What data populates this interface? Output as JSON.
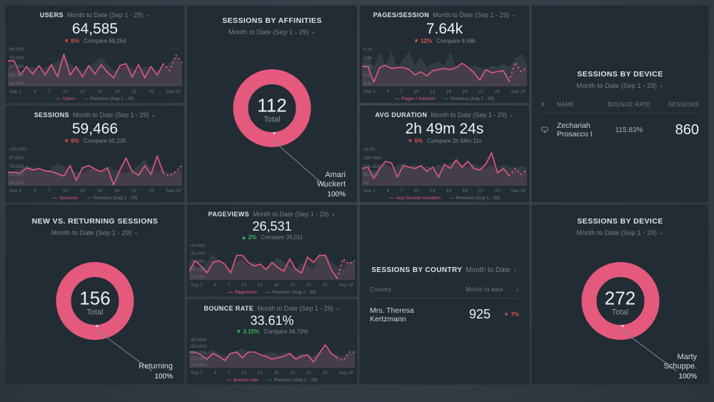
{
  "colors": {
    "accent_pink": "#e5597d",
    "prev_fill": "#3e474f",
    "red": "#dd5149",
    "green": "#3fb45a",
    "muted": "#77808a",
    "callout_line": "#808a93"
  },
  "chart_data": [
    {
      "type": "line",
      "title": "USERS",
      "subtitle": "Month to Date (Sep 1 - 29)",
      "value": "64,585",
      "delta": "▼ 5%",
      "delta_color": "#dd5149",
      "compare": "Compare 68,264",
      "ylim": [
        40,
        80
      ],
      "yticks": [
        "80,000",
        "70,000",
        "60,000",
        "50,000",
        "40,000"
      ],
      "x": [
        "Sep 1",
        "4",
        "7",
        "10",
        "13",
        "16",
        "19",
        "22",
        "25",
        "Sep 29"
      ],
      "grid": true,
      "legend_position": "bottom",
      "series": [
        {
          "name": "Users",
          "values": [
            67,
            67,
            52,
            61,
            53,
            62,
            52,
            63,
            50,
            74,
            52,
            61,
            50,
            62,
            53,
            63,
            55,
            49,
            62,
            64,
            50,
            63,
            49,
            61,
            52,
            64,
            57,
            73,
            65
          ]
        },
        {
          "name": "Previous (Aug 1 - 29)",
          "values": [
            60,
            58,
            56,
            58,
            61,
            56,
            60,
            63,
            67,
            71,
            64,
            59,
            57,
            61,
            66,
            71,
            63,
            57,
            59,
            62,
            59,
            57,
            61,
            58,
            56,
            60,
            66,
            71,
            63
          ]
        }
      ]
    },
    {
      "type": "line",
      "title": "SESSIONS",
      "subtitle": "Month to Date (Sep 1 - 29)",
      "value": "59,466",
      "delta": "▼ 9%",
      "delta_color": "#dd5149",
      "compare": "Compare 65,235",
      "ylim": [
        50,
        100
      ],
      "yticks": [
        "100,000",
        "87,500",
        "75,000",
        "62,500",
        "50,000"
      ],
      "x": [
        "Sep 1",
        "4",
        "7",
        "10",
        "13",
        "16",
        "19",
        "22",
        "25",
        "Sep 29"
      ],
      "grid": true,
      "legend_position": "bottom",
      "series": [
        {
          "name": "Sessions",
          "values": [
            68,
            68,
            67,
            74,
            71,
            73,
            70,
            69,
            66,
            63,
            77,
            57,
            74,
            77,
            72,
            69,
            74,
            51,
            71,
            87,
            69,
            64,
            77,
            65,
            90,
            67,
            63,
            69,
            78
          ]
        },
        {
          "name": "Previous (Aug 1 - 29)",
          "values": [
            68,
            70,
            72,
            78,
            74,
            71,
            69,
            73,
            80,
            76,
            71,
            69,
            67,
            71,
            74,
            69,
            76,
            71,
            69,
            67,
            70,
            78,
            86,
            73,
            69,
            71,
            67,
            69,
            71
          ]
        }
      ]
    },
    {
      "type": "pie",
      "title": "SESSIONS BY AFFINITIES",
      "subtitle": "Month to Date (Sep 1 - 29)",
      "total": "112",
      "total_label": "Total",
      "slices": [
        {
          "label": "Amari Wuckert",
          "pct": "100%",
          "value": 112
        }
      ]
    },
    {
      "type": "line",
      "title": "PAGES/SESSION",
      "subtitle": "Month to Date (Sep 1 - 29)",
      "value": "7.64k",
      "delta": "▼ 12%",
      "delta_color": "#dd5149",
      "compare": "Compare 8.68k",
      "ylim": [
        5.6,
        9.2
      ],
      "yticks": [
        "9.2k",
        "8.3k",
        "7.4k",
        "6.5k",
        "5.6k"
      ],
      "x": [
        "Sep 1",
        "4",
        "7",
        "10",
        "13",
        "16",
        "19",
        "22",
        "25",
        "Sep 29"
      ],
      "grid": true,
      "legend_position": "bottom",
      "series": [
        {
          "name": "Pages / Session",
          "values": [
            7.5,
            7.5,
            6.0,
            7.4,
            7.6,
            7.3,
            7.4,
            7.4,
            7.2,
            6.7,
            7.0,
            6.6,
            7.1,
            7.2,
            7.3,
            7.2,
            7.4,
            7.8,
            7.4,
            6.9,
            6.2,
            7.2,
            6.9,
            7.0,
            7.1,
            6.1,
            7.9,
            7.0,
            7.4
          ]
        },
        {
          "name": "Previous (Aug 1 - 29)",
          "values": [
            7.8,
            8.6,
            7.4,
            8.9,
            7.6,
            9.0,
            7.4,
            8.2,
            8.9,
            7.6,
            8.4,
            7.4,
            7.8,
            8.0,
            7.6,
            8.9,
            7.4,
            7.6,
            7.2,
            7.6,
            7.4,
            7.2,
            7.6,
            7.4,
            7.8,
            7.4,
            8.2,
            8.7,
            7.8
          ]
        }
      ]
    },
    {
      "type": "line",
      "title": "AVG DURATION",
      "subtitle": "Month to Date (Sep 1 - 29)",
      "value": "2h 49m 24s",
      "delta": "▼ 5%",
      "delta_color": "#dd5149",
      "compare": "Compare 2h 58m 11s",
      "ylim": [
        0,
        26
      ],
      "yticks": [
        "1d 2h",
        "18h 45m",
        "12h 30m",
        "6h 15m",
        "0s"
      ],
      "x": [
        "Sep 1",
        "4",
        "7",
        "10",
        "13",
        "16",
        "19",
        "22",
        "25",
        "Sep 29"
      ],
      "grid": true,
      "legend_position": "bottom",
      "series": [
        {
          "name": "Avg Session Duration",
          "values": [
            12,
            13,
            5,
            12,
            17,
            16,
            6,
            14,
            13,
            12,
            14,
            10,
            13,
            6,
            15,
            12,
            18,
            13,
            17,
            12,
            11,
            15,
            23,
            9,
            12,
            7,
            12,
            8,
            11
          ]
        },
        {
          "name": "Previous (Aug 1 - 29)",
          "values": [
            14,
            12,
            10,
            13,
            15,
            12,
            14,
            16,
            13,
            15,
            12,
            14,
            12,
            15,
            13,
            16,
            19,
            14,
            12,
            16,
            13,
            12,
            14,
            12,
            15,
            13,
            12,
            14,
            12
          ]
        }
      ]
    },
    {
      "type": "table",
      "title": "SESSIONS BY DEVICE",
      "subtitle": "Month to Date (Sep 1 - 29)",
      "columns": [
        "#",
        "NAME",
        "BOUNCE RATE",
        "SESSIONS"
      ],
      "rows": [
        {
          "name": "Zechariah Prosacco I",
          "bounce_rate": "115.83%",
          "sessions": "860"
        }
      ]
    },
    {
      "type": "pie",
      "title": "NEW VS. RETURNING SESSIONS",
      "subtitle": "Month to Date (Sep 1 - 29)",
      "total": "156",
      "total_label": "Total",
      "slices": [
        {
          "label": "Returning",
          "pct": "100%",
          "value": 156
        }
      ]
    },
    {
      "type": "line",
      "title": "PAGEVIEWS",
      "subtitle": "Month to Date (Sep 1 - 29)",
      "value": "26,531",
      "delta": "▲ 2%",
      "delta_color": "#3fb45a",
      "compare": "Compare 26,011",
      "ylim": [
        20,
        40
      ],
      "yticks": [
        "40,000",
        "35,000",
        "30,000",
        "25,000",
        "20,000"
      ],
      "x": [
        "Sep 1",
        "4",
        "7",
        "10",
        "13",
        "16",
        "19",
        "22",
        "25",
        "Sep 29"
      ],
      "grid": true,
      "legend_position": "bottom",
      "series": [
        {
          "name": "Pageviews",
          "values": [
            25,
            31,
            28,
            24,
            30,
            31,
            29,
            24,
            34,
            34,
            30,
            28,
            29,
            26,
            30,
            27,
            25,
            32,
            26,
            24,
            33,
            30,
            34,
            34,
            26,
            21,
            32,
            29,
            31
          ]
        },
        {
          "name": "Previous (Aug 1 - 29)",
          "values": [
            30,
            28,
            26,
            30,
            35,
            30,
            28,
            26,
            30,
            32,
            28,
            30,
            28,
            26,
            30,
            33,
            30,
            28,
            26,
            30,
            28,
            26,
            34,
            35,
            30,
            28,
            26,
            30,
            31
          ]
        }
      ]
    },
    {
      "type": "line",
      "title": "BOUNCE RATE",
      "subtitle": "Month to Date (Sep 1 - 29)",
      "value": "33.61%",
      "delta": "▼ 3.15%",
      "delta_color": "#3fb45a",
      "compare": "Compare 34.70%",
      "ylim": [
        20,
        40
      ],
      "yticks": [
        "40.00%",
        "35.00%",
        "30.00%",
        "25.00%",
        "20.00%"
      ],
      "x": [
        "Sep 1",
        "4",
        "7",
        "10",
        "13",
        "16",
        "19",
        "22",
        "25",
        "Sep 29"
      ],
      "grid": true,
      "legend_position": "bottom",
      "series": [
        {
          "name": "Bounce rate",
          "values": [
            31,
            31,
            29,
            26,
            30,
            28,
            25,
            30,
            31,
            27,
            31,
            31,
            29,
            28,
            26,
            27,
            28,
            30,
            26,
            28,
            29,
            24,
            30,
            36,
            30,
            27,
            25,
            31,
            31
          ]
        },
        {
          "name": "Previous (Aug 1 - 29)",
          "values": [
            32,
            30,
            28,
            31,
            33,
            30,
            28,
            30,
            32,
            34,
            31,
            29,
            28,
            30,
            31,
            29,
            31,
            30,
            28,
            30,
            29,
            28,
            31,
            33,
            30,
            29,
            28,
            30,
            31
          ]
        }
      ]
    },
    {
      "type": "table",
      "title": "SESSIONS BY COUNTRY",
      "subtitle": "Month to Date",
      "columns": [
        "Country",
        "Month to date",
        "Δ"
      ],
      "rows": [
        {
          "country": "Mrs. Theresa Kertzmann",
          "value": "925",
          "delta": "▼ 7%",
          "delta_color": "#dd5149"
        }
      ]
    },
    {
      "type": "pie",
      "title": "SESSIONS BY DEVICE",
      "subtitle": "Month to Date (Sep 1 - 29)",
      "total": "272",
      "total_label": "Total",
      "slices": [
        {
          "label": "Marty Schuppe.",
          "pct": "100%",
          "value": 272
        }
      ]
    }
  ]
}
